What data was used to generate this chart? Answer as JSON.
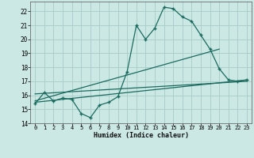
{
  "xlabel": "Humidex (Indice chaleur)",
  "bg_color": "#cce8e4",
  "grid_color": "#aacfca",
  "line_color": "#1a6b5e",
  "xlim": [
    -0.5,
    23.5
  ],
  "ylim": [
    14,
    22.7
  ],
  "yticks": [
    14,
    15,
    16,
    17,
    18,
    19,
    20,
    21,
    22
  ],
  "xticks": [
    0,
    1,
    2,
    3,
    4,
    5,
    6,
    7,
    8,
    9,
    10,
    11,
    12,
    13,
    14,
    15,
    16,
    17,
    18,
    19,
    20,
    21,
    22,
    23
  ],
  "series1_x": [
    0,
    1,
    2,
    3,
    4,
    5,
    6,
    7,
    8,
    9,
    10,
    11,
    12,
    13,
    14,
    15,
    16,
    17,
    18,
    19,
    20,
    21,
    22,
    23
  ],
  "series1_y": [
    15.4,
    16.2,
    15.6,
    15.8,
    15.7,
    14.7,
    14.4,
    15.3,
    15.5,
    15.9,
    17.7,
    21.0,
    20.0,
    20.8,
    22.3,
    22.2,
    21.6,
    21.3,
    20.3,
    19.3,
    17.9,
    17.1,
    17.0,
    17.1
  ],
  "series2_x": [
    0,
    23
  ],
  "series2_y": [
    15.5,
    17.1
  ],
  "series3_x": [
    0,
    20
  ],
  "series3_y": [
    15.6,
    19.3
  ],
  "series4_x": [
    0,
    23
  ],
  "series4_y": [
    16.1,
    17.0
  ]
}
